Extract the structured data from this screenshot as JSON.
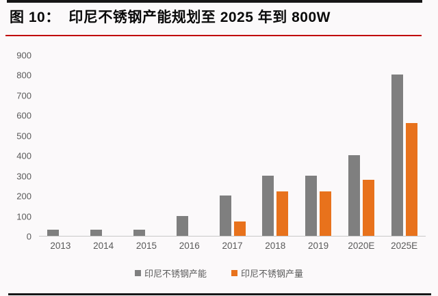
{
  "header": {
    "title": "图 10：  印尼不锈钢产能规划至 2025 年到 800W"
  },
  "chart_data": {
    "type": "bar",
    "title": "印尼不锈钢产能规划至 2025 年到 800W",
    "categories": [
      "2013",
      "2014",
      "2015",
      "2016",
      "2017",
      "2018",
      "2019",
      "2020E",
      "2025E"
    ],
    "series": [
      {
        "name": "印尼不锈钢产能",
        "color": "#7f7f7f",
        "values": [
          30,
          30,
          30,
          100,
          200,
          300,
          300,
          400,
          800
        ]
      },
      {
        "name": "印尼不锈钢产量",
        "color": "#e8721c",
        "values": [
          null,
          null,
          null,
          null,
          70,
          220,
          220,
          280,
          560
        ]
      }
    ],
    "xlabel": "",
    "ylabel": "",
    "ylim": [
      0,
      900
    ],
    "ytick_interval": 100,
    "grid": false,
    "legend_position": "bottom"
  },
  "colors": {
    "accent_red": "#c00000",
    "rule_black": "#161616",
    "axis_text": "#595959",
    "baseline": "#c8c8c8",
    "background": "#fbf9fa"
  }
}
